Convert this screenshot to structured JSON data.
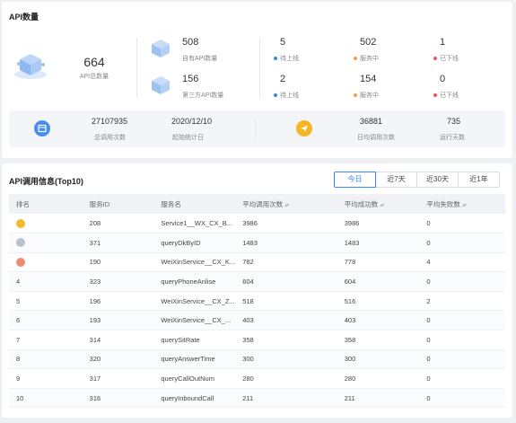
{
  "overview": {
    "title": "API数量",
    "total": {
      "value": "664",
      "label": "API总数量"
    },
    "own": {
      "value": "508",
      "label": "自有API数量"
    },
    "third": {
      "value": "156",
      "label": "第三方API数量"
    },
    "own_status": [
      {
        "value": "5",
        "label": "待上线",
        "color": "#3a85f0"
      },
      {
        "value": "502",
        "label": "服务中",
        "color": "#f59a4c"
      },
      {
        "value": "1",
        "label": "已下线",
        "color": "#ee5656"
      }
    ],
    "third_status": [
      {
        "value": "2",
        "label": "待上线",
        "color": "#3a85f0"
      },
      {
        "value": "154",
        "label": "服务中",
        "color": "#f59a4c"
      },
      {
        "value": "0",
        "label": "已下线",
        "color": "#ee5656"
      }
    ],
    "stats": {
      "total_calls": {
        "value": "27107935",
        "label": "总调用次数"
      },
      "start_date": {
        "value": "2020/12/10",
        "label": "起始统计日"
      },
      "avg_daily": {
        "value": "36881",
        "label": "日均调用次数"
      },
      "run_days": {
        "value": "735",
        "label": "运行天数"
      }
    }
  },
  "top10": {
    "title": "API调用信息(Top10)",
    "tabs": [
      "今日",
      "近7天",
      "近30天",
      "近1年"
    ],
    "active_tab": 0,
    "columns": [
      "排名",
      "服务ID",
      "服务名",
      "平均调用次数",
      "平均成功数",
      "平均失败数"
    ],
    "sortable": [
      false,
      false,
      false,
      true,
      true,
      true
    ],
    "rows": [
      {
        "rank": "",
        "medal": "gold",
        "id": "208",
        "name": "Service1__WX_CX_B...",
        "calls": "3986",
        "success": "3986",
        "fail": "0"
      },
      {
        "rank": "",
        "medal": "silver",
        "id": "371",
        "name": "queryDkByID",
        "calls": "1483",
        "success": "1483",
        "fail": "0"
      },
      {
        "rank": "",
        "medal": "bronze",
        "id": "190",
        "name": "WeiXinService__CX_K...",
        "calls": "782",
        "success": "778",
        "fail": "4"
      },
      {
        "rank": "4",
        "medal": "",
        "id": "323",
        "name": "queryPhoneAnlise",
        "calls": "604",
        "success": "604",
        "fail": "0"
      },
      {
        "rank": "5",
        "medal": "",
        "id": "196",
        "name": "WeiXinService__CX_Z...",
        "calls": "518",
        "success": "516",
        "fail": "2"
      },
      {
        "rank": "6",
        "medal": "",
        "id": "193",
        "name": "WeiXinService__CX_...",
        "calls": "403",
        "success": "403",
        "fail": "0"
      },
      {
        "rank": "7",
        "medal": "",
        "id": "314",
        "name": "querySitRate",
        "calls": "358",
        "success": "358",
        "fail": "0"
      },
      {
        "rank": "8",
        "medal": "",
        "id": "320",
        "name": "queryAnswerTime",
        "calls": "300",
        "success": "300",
        "fail": "0"
      },
      {
        "rank": "9",
        "medal": "",
        "id": "317",
        "name": "queryCallOutNum",
        "calls": "280",
        "success": "280",
        "fail": "0"
      },
      {
        "rank": "10",
        "medal": "",
        "id": "316",
        "name": "queryInboundCall",
        "calls": "211",
        "success": "211",
        "fail": "0"
      }
    ]
  }
}
